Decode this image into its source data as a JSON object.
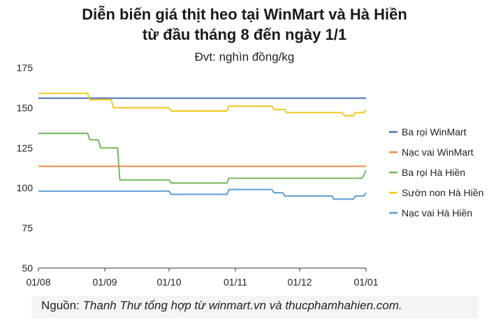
{
  "chart_data": {
    "type": "line",
    "title": "Diễn biến giá thịt heo tại WinMart và Hà Hiền",
    "title_line2": "từ đầu tháng 8 đến ngày 1/1",
    "subtitle": "Đvt: nghìn đồng/kg",
    "ylim": [
      50,
      175
    ],
    "yticks": [
      "175",
      "150",
      "125",
      "100",
      "75",
      "50"
    ],
    "xticks": [
      "01/08",
      "01/09",
      "01/10",
      "01/11",
      "01/12",
      "01/01"
    ],
    "grid": false,
    "legend_position": "right",
    "series": [
      {
        "name": "Ba rọi WinMart",
        "color": "#4a6fb3",
        "points": [
          [
            "01/08",
            156
          ],
          [
            "01/01",
            156
          ]
        ]
      },
      {
        "name": "Nạc vai WinMart",
        "color": "#f08c4a",
        "points": [
          [
            "01/08",
            113.5
          ],
          [
            "01/01",
            113.5
          ]
        ]
      },
      {
        "name": "Ba rọi Hà Hiền",
        "color": "#73b95a",
        "points": [
          [
            "01/08",
            134
          ],
          [
            "24/08",
            134
          ],
          [
            "25/08",
            130
          ],
          [
            "29/08",
            130
          ],
          [
            "30/08",
            125
          ],
          [
            "07/09",
            125
          ],
          [
            "08/09",
            105
          ],
          [
            "01/10",
            105
          ],
          [
            "02/10",
            103
          ],
          [
            "28/10",
            103
          ],
          [
            "29/10",
            106
          ],
          [
            "30/12",
            106
          ],
          [
            "31/12",
            108
          ],
          [
            "01/01",
            111
          ]
        ]
      },
      {
        "name": "Sườn non Hà Hiền",
        "color": "#f2c81f",
        "points": [
          [
            "01/08",
            159
          ],
          [
            "24/08",
            159
          ],
          [
            "25/08",
            155
          ],
          [
            "04/09",
            155
          ],
          [
            "05/09",
            150
          ],
          [
            "01/10",
            150
          ],
          [
            "02/10",
            148
          ],
          [
            "28/10",
            148
          ],
          [
            "29/10",
            151
          ],
          [
            "18/11",
            151
          ],
          [
            "19/11",
            149
          ],
          [
            "24/11",
            149
          ],
          [
            "25/11",
            147
          ],
          [
            "21/12",
            147
          ],
          [
            "22/12",
            145
          ],
          [
            "26/12",
            145
          ],
          [
            "27/12",
            147
          ],
          [
            "31/12",
            147
          ],
          [
            "01/01",
            149
          ]
        ]
      },
      {
        "name": "Nạc vai Hà Hiền",
        "color": "#5a9fd4",
        "points": [
          [
            "01/08",
            98
          ],
          [
            "01/10",
            98
          ],
          [
            "02/10",
            96
          ],
          [
            "28/10",
            96
          ],
          [
            "29/10",
            99
          ],
          [
            "18/11",
            99
          ],
          [
            "19/11",
            97
          ],
          [
            "23/11",
            97
          ],
          [
            "24/11",
            95
          ],
          [
            "16/12",
            95
          ],
          [
            "17/12",
            93
          ],
          [
            "26/12",
            93
          ],
          [
            "27/12",
            95
          ],
          [
            "31/12",
            95
          ],
          [
            "01/01",
            97
          ]
        ]
      }
    ]
  },
  "source": {
    "prefix": "Nguồn: ",
    "text": "Thanh Thư tổng hợp từ winmart.vn và thucphamhahien.com."
  }
}
